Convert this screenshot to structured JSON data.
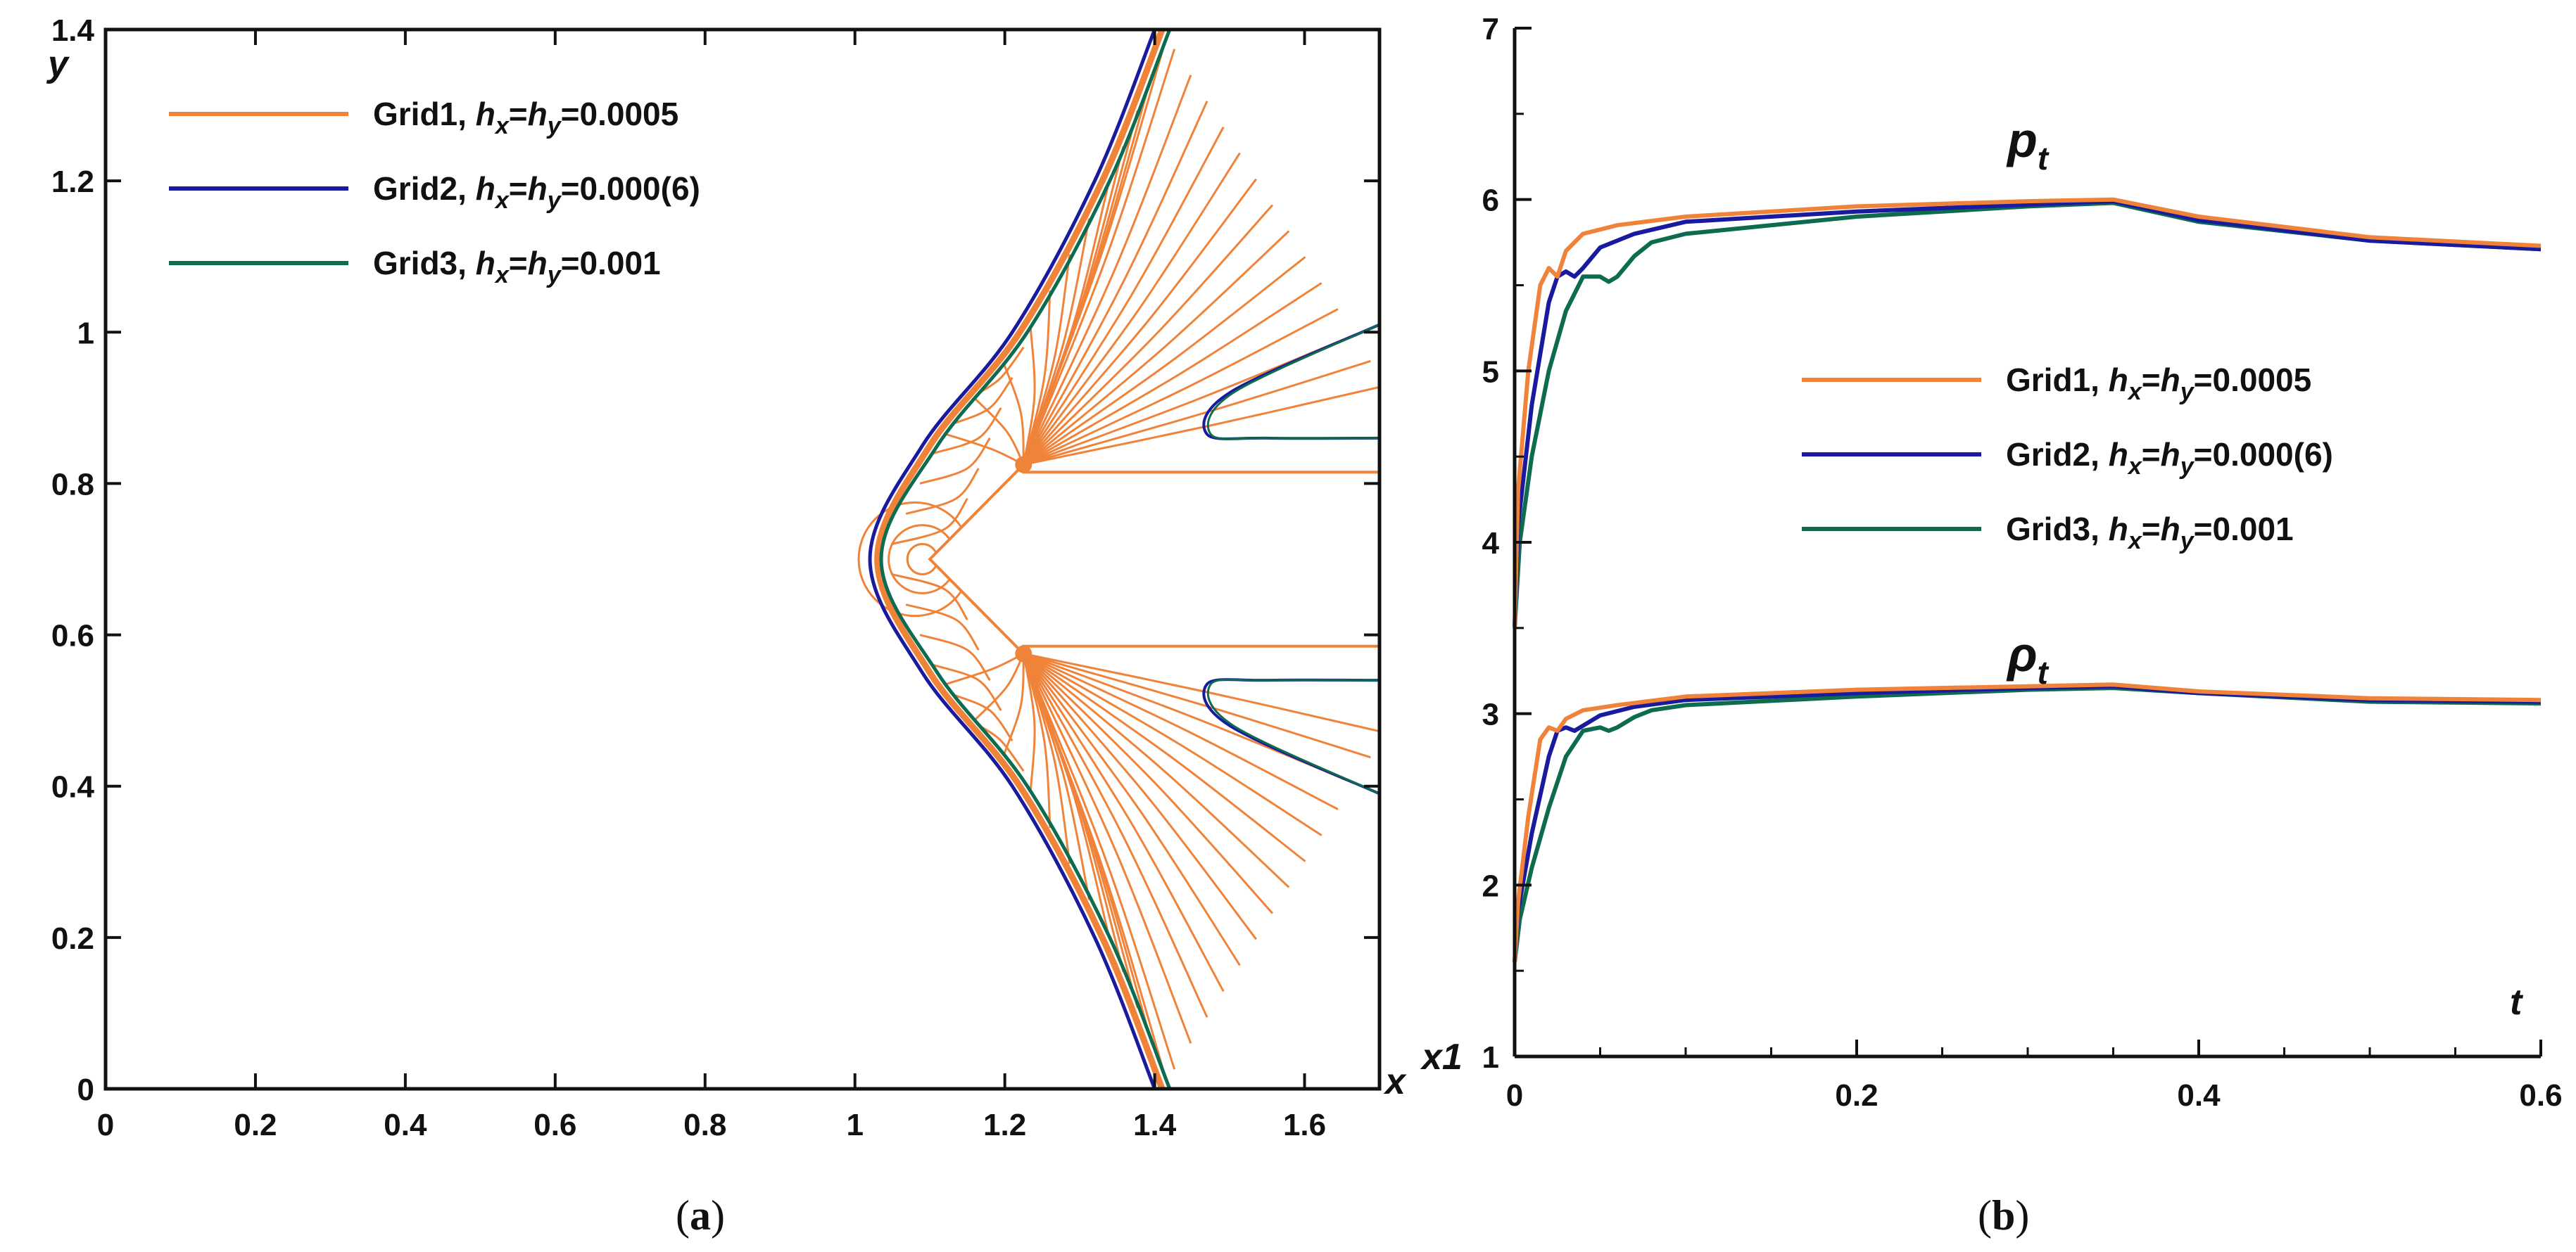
{
  "colors": {
    "grid1": "#F0833A",
    "grid2": "#1A1A9E",
    "grid3": "#0D6B50",
    "axis": "#111111"
  },
  "chart_data": [
    {
      "panel": "a",
      "caption_letter": "a",
      "type": "line",
      "title": "",
      "xlabel": "x",
      "ylabel": "y",
      "xlim": [
        0,
        1.7
      ],
      "ylim": [
        0,
        1.4
      ],
      "x_ticks": [
        0,
        0.2,
        0.4,
        0.6,
        0.8,
        1,
        1.2,
        1.4,
        1.6
      ],
      "x_tick_labels": [
        "0",
        "0.2",
        "0.4",
        "0.6",
        "0.8",
        "1",
        "1.2",
        "1.4",
        "1.6"
      ],
      "y_ticks": [
        0,
        0.2,
        0.4,
        0.6,
        0.8,
        1,
        1.2,
        1.4
      ],
      "y_tick_labels": [
        "0",
        "0.2",
        "0.4",
        "0.6",
        "0.8",
        "1",
        "1.2",
        "1.4"
      ],
      "legend_position": "top-left",
      "legend": [
        {
          "name": "Grid1",
          "label": "Grid1, ",
          "spacing": "0.0005"
        },
        {
          "name": "Grid2",
          "label": "Grid2, ",
          "spacing": "0.000(6)"
        },
        {
          "name": "Grid3",
          "label": "Grid3, ",
          "spacing": "0.001"
        }
      ],
      "body": {
        "nose": [
          1.1,
          0.7
        ],
        "upper_corner": [
          1.225,
          0.825
        ],
        "lower_corner": [
          1.225,
          0.575
        ],
        "upper_surface_y": 0.815,
        "lower_surface_y": 0.585,
        "x_end": 1.7
      },
      "series": [
        {
          "name": "Grid1 bow shock",
          "points": [
            [
              1.41,
              0
            ],
            [
              1.33,
              0.2
            ],
            [
              1.22,
              0.4
            ],
            [
              1.1,
              0.55
            ],
            [
              1.03,
              0.7
            ],
            [
              1.1,
              0.85
            ],
            [
              1.22,
              1.0
            ],
            [
              1.33,
              1.2
            ],
            [
              1.41,
              1.4
            ]
          ]
        },
        {
          "name": "Grid2 bow shock",
          "points": [
            [
              1.4,
              0
            ],
            [
              1.32,
              0.2
            ],
            [
              1.21,
              0.4
            ],
            [
              1.09,
              0.55
            ],
            [
              1.02,
              0.7
            ],
            [
              1.09,
              0.85
            ],
            [
              1.21,
              1.0
            ],
            [
              1.32,
              1.2
            ],
            [
              1.4,
              1.4
            ]
          ]
        },
        {
          "name": "Grid3 bow shock",
          "points": [
            [
              1.42,
              0
            ],
            [
              1.34,
              0.2
            ],
            [
              1.23,
              0.4
            ],
            [
              1.11,
              0.55
            ],
            [
              1.035,
              0.7
            ],
            [
              1.11,
              0.85
            ],
            [
              1.23,
              1.0
            ],
            [
              1.34,
              1.2
            ],
            [
              1.42,
              1.4
            ]
          ]
        }
      ]
    },
    {
      "panel": "b",
      "caption_letter": "b",
      "type": "line",
      "title": "",
      "xlabel": "t",
      "ylabel": "",
      "xlim": [
        0,
        0.6
      ],
      "ylim": [
        1,
        7
      ],
      "x_ticks": [
        0,
        0.2,
        0.4,
        0.6
      ],
      "x_tick_labels": [
        "0",
        "0.2",
        "0.4",
        "0.6"
      ],
      "y_ticks": [
        1,
        2,
        3,
        4,
        5,
        6,
        7
      ],
      "y_tick_labels": [
        "1",
        "2",
        "3",
        "4",
        "5",
        "6",
        "7"
      ],
      "axis_multiplier": "x1",
      "annotations": [
        {
          "base": "p",
          "sub": "t",
          "x": 0.3,
          "y": 6.25
        },
        {
          "base": "ρ",
          "sub": "t",
          "x": 0.3,
          "y": 3.25
        }
      ],
      "legend_position": "center-right",
      "legend": [
        {
          "name": "Grid1",
          "label": "Grid1, ",
          "spacing": "0.0005"
        },
        {
          "name": "Grid2",
          "label": "Grid2, ",
          "spacing": "0.000(6)"
        },
        {
          "name": "Grid3",
          "label": "Grid3, ",
          "spacing": "0.001"
        }
      ],
      "series": [
        {
          "name": "Grid1 p_t",
          "x": [
            0,
            0.002,
            0.008,
            0.015,
            0.02,
            0.025,
            0.03,
            0.04,
            0.06,
            0.1,
            0.2,
            0.3,
            0.35,
            0.4,
            0.5,
            0.6
          ],
          "y": [
            3.5,
            4.3,
            5.0,
            5.5,
            5.6,
            5.55,
            5.7,
            5.8,
            5.85,
            5.9,
            5.96,
            5.99,
            6.0,
            5.9,
            5.78,
            5.73
          ]
        },
        {
          "name": "Grid2 p_t",
          "x": [
            0,
            0.002,
            0.01,
            0.02,
            0.025,
            0.03,
            0.035,
            0.04,
            0.05,
            0.07,
            0.1,
            0.2,
            0.3,
            0.35,
            0.4,
            0.5,
            0.6
          ],
          "y": [
            3.5,
            4.1,
            4.8,
            5.4,
            5.55,
            5.58,
            5.55,
            5.6,
            5.72,
            5.8,
            5.87,
            5.93,
            5.97,
            5.99,
            5.88,
            5.76,
            5.71
          ]
        },
        {
          "name": "Grid3 p_t",
          "x": [
            0,
            0.003,
            0.01,
            0.02,
            0.03,
            0.04,
            0.05,
            0.055,
            0.06,
            0.07,
            0.08,
            0.1,
            0.2,
            0.3,
            0.35,
            0.4,
            0.5,
            0.6
          ],
          "y": [
            3.5,
            4.0,
            4.5,
            5.0,
            5.35,
            5.55,
            5.55,
            5.52,
            5.55,
            5.67,
            5.75,
            5.8,
            5.9,
            5.96,
            5.98,
            5.87,
            5.76,
            5.71
          ]
        },
        {
          "name": "Grid1 rho_t",
          "x": [
            0,
            0.002,
            0.008,
            0.015,
            0.02,
            0.025,
            0.03,
            0.04,
            0.06,
            0.1,
            0.2,
            0.3,
            0.35,
            0.4,
            0.5,
            0.6
          ],
          "y": [
            1.55,
            1.9,
            2.4,
            2.85,
            2.92,
            2.9,
            2.97,
            3.02,
            3.05,
            3.1,
            3.14,
            3.16,
            3.17,
            3.13,
            3.09,
            3.08
          ]
        },
        {
          "name": "Grid2 rho_t",
          "x": [
            0,
            0.002,
            0.01,
            0.02,
            0.025,
            0.03,
            0.035,
            0.04,
            0.05,
            0.07,
            0.1,
            0.2,
            0.3,
            0.35,
            0.4,
            0.5,
            0.6
          ],
          "y": [
            1.55,
            1.85,
            2.3,
            2.75,
            2.9,
            2.92,
            2.9,
            2.93,
            2.99,
            3.04,
            3.08,
            3.12,
            3.15,
            3.16,
            3.12,
            3.08,
            3.07
          ]
        },
        {
          "name": "Grid3 rho_t",
          "x": [
            0,
            0.003,
            0.01,
            0.02,
            0.03,
            0.04,
            0.05,
            0.055,
            0.06,
            0.07,
            0.08,
            0.1,
            0.2,
            0.3,
            0.35,
            0.4,
            0.5,
            0.6
          ],
          "y": [
            1.55,
            1.8,
            2.1,
            2.45,
            2.75,
            2.9,
            2.92,
            2.9,
            2.92,
            2.98,
            3.02,
            3.05,
            3.1,
            3.14,
            3.15,
            3.12,
            3.07,
            3.06
          ]
        }
      ]
    }
  ]
}
